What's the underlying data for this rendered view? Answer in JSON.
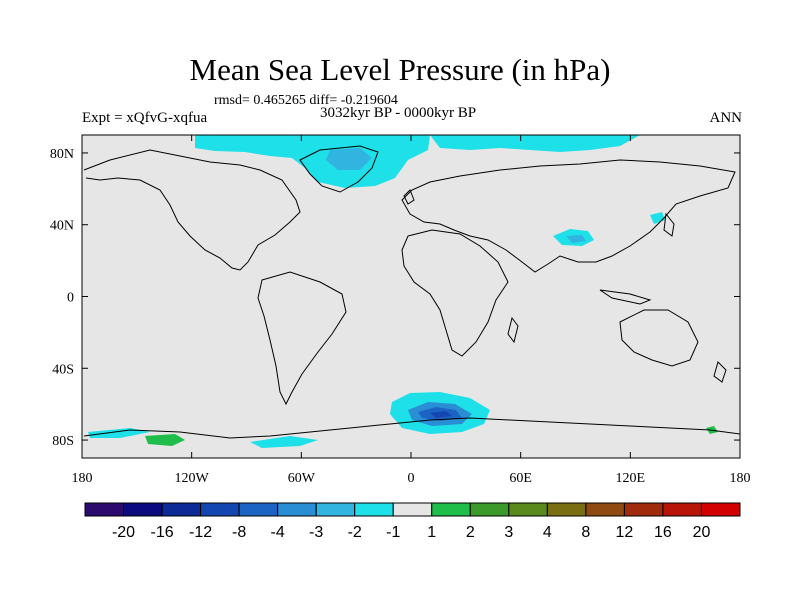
{
  "chart_data": {
    "type": "heatmap",
    "title": "Mean Sea Level Pressure (in hPa)",
    "stats": "rmsd= 0.465265 diff= -0.219604",
    "period": "3032kyr BP - 0000kyr BP",
    "experiment": "Expt = xQfvG-xqfua",
    "season": "ANN",
    "x_ticks": [
      {
        "value": -180,
        "label": "180"
      },
      {
        "value": -120,
        "label": "120W"
      },
      {
        "value": -60,
        "label": "60W"
      },
      {
        "value": 0,
        "label": "0"
      },
      {
        "value": 60,
        "label": "60E"
      },
      {
        "value": 120,
        "label": "120E"
      },
      {
        "value": 180,
        "label": "180"
      }
    ],
    "y_ticks": [
      {
        "value": 80,
        "label": "80N"
      },
      {
        "value": 40,
        "label": "40N"
      },
      {
        "value": 0,
        "label": "0"
      },
      {
        "value": -40,
        "label": "40S"
      },
      {
        "value": -80,
        "label": "80S"
      }
    ],
    "xlim": [
      -180,
      180
    ],
    "ylim": [
      -90,
      90
    ],
    "colorbar": {
      "labels": [
        "-20",
        "-16",
        "-12",
        "-8",
        "-4",
        "-3",
        "-2",
        "-1",
        "1",
        "2",
        "3",
        "4",
        "8",
        "12",
        "16",
        "20"
      ],
      "colors": [
        "#2d0a6e",
        "#0c0c80",
        "#0e2a96",
        "#1346b0",
        "#1c64c4",
        "#2a8ed4",
        "#32b4e0",
        "#1ee0e8",
        "#e6e6e6",
        "#1fbe4a",
        "#3c9a2a",
        "#5a8a1e",
        "#7a6e12",
        "#8e4a10",
        "#a02a0c",
        "#b81408",
        "#d20000"
      ]
    },
    "anomaly_regions": [
      {
        "name": "arctic-greenland-low",
        "lon": [
          -110,
          20
        ],
        "lat": [
          58,
          90
        ],
        "bin": "-2 to -1"
      },
      {
        "name": "arctic-siberia-low",
        "lon": [
          20,
          100
        ],
        "lat": [
          78,
          90
        ],
        "bin": "-2 to -1"
      },
      {
        "name": "tibet-low",
        "lon": [
          80,
          105
        ],
        "lat": [
          30,
          38
        ],
        "bin": "-3 to -2"
      },
      {
        "name": "southern-ocean-low",
        "lon": [
          -10,
          40
        ],
        "lat": [
          -80,
          -55
        ],
        "bin": "-8 to -1"
      },
      {
        "name": "antarctic-positive",
        "lon": [
          -160,
          -130
        ],
        "lat": [
          -88,
          -82
        ],
        "bin": "1 to 2"
      }
    ],
    "background_bin": "-1 to 1"
  }
}
